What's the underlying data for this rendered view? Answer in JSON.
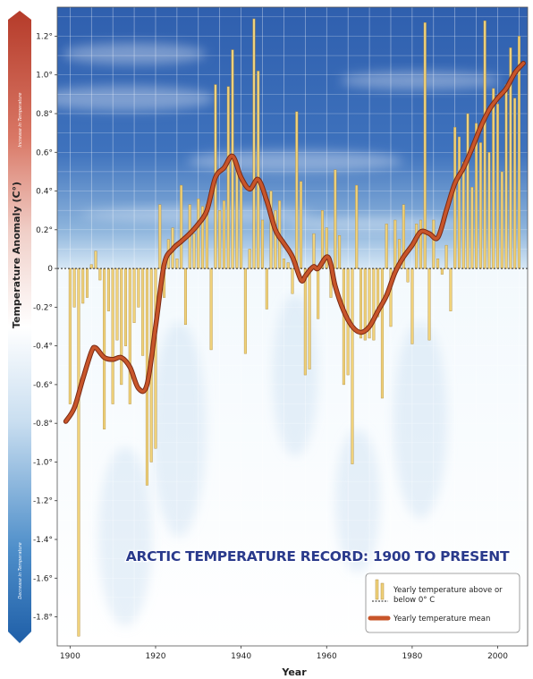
{
  "chart_data": {
    "type": "bar",
    "title": "ARCTIC TEMPERATURE RECORD: 1900 TO PRESENT",
    "xlabel": "Year",
    "ylabel": "Temperature Anomaly (C°)",
    "arrow_labels": {
      "top": "Increase in Temperature",
      "bottom": "Decrease in Temperature"
    },
    "xlim": [
      1897,
      2007
    ],
    "ylim": [
      -1.95,
      1.35
    ],
    "x_ticks": [
      1900,
      1920,
      1940,
      1960,
      1980,
      2000
    ],
    "x_tick_labels": [
      "1900",
      "1920",
      "1940",
      "1960",
      "1980",
      "2000"
    ],
    "y_ticks": [
      1.2,
      1.0,
      0.8,
      0.6,
      0.4,
      0.2,
      0,
      -0.2,
      -0.4,
      -0.6,
      -0.8,
      -1.0,
      -1.2,
      -1.4,
      -1.6,
      -1.8
    ],
    "y_tick_labels": [
      "1.2°",
      "1.0°",
      "0.8°",
      "0.6°",
      "0.4°",
      "0.2°",
      "0",
      "-0.2°",
      "-0.4°",
      "-0.6°",
      "-0.8°",
      "-1.0°",
      "-1.2°",
      "-1.4°",
      "-1.6°",
      "-1.8°"
    ],
    "grid": true,
    "legend": {
      "position": "bottom-right",
      "entries": [
        {
          "label": "Yearly temperature above or below 0° C"
        },
        {
          "label": "Yearly temperature mean"
        }
      ]
    },
    "colors": {
      "bar": "#f0d27a",
      "bar_edge": "#b08a3a",
      "mean_line": "#c8552a",
      "zero_line": "#222222"
    },
    "series": [
      {
        "name": "Yearly temperature above or below 0° C",
        "type": "bar",
        "x": [
          1900,
          1901,
          1902,
          1903,
          1904,
          1905,
          1906,
          1907,
          1908,
          1909,
          1910,
          1911,
          1912,
          1913,
          1914,
          1915,
          1916,
          1917,
          1918,
          1919,
          1920,
          1921,
          1922,
          1923,
          1924,
          1925,
          1926,
          1927,
          1928,
          1929,
          1930,
          1931,
          1932,
          1933,
          1934,
          1935,
          1936,
          1937,
          1938,
          1939,
          1940,
          1941,
          1942,
          1943,
          1944,
          1945,
          1946,
          1947,
          1948,
          1949,
          1950,
          1951,
          1952,
          1953,
          1954,
          1955,
          1956,
          1957,
          1958,
          1959,
          1960,
          1961,
          1962,
          1963,
          1964,
          1965,
          1966,
          1967,
          1968,
          1969,
          1970,
          1971,
          1972,
          1973,
          1974,
          1975,
          1976,
          1977,
          1978,
          1979,
          1980,
          1981,
          1982,
          1983,
          1984,
          1985,
          1986,
          1987,
          1988,
          1989,
          1990,
          1991,
          1992,
          1993,
          1994,
          1995,
          1996,
          1997,
          1998,
          1999,
          2000,
          2001,
          2002,
          2003,
          2004,
          2005
        ],
        "values": [
          -0.7,
          -0.2,
          -1.9,
          -0.18,
          -0.15,
          0.02,
          0.09,
          -0.06,
          -0.83,
          -0.22,
          -0.7,
          -0.37,
          -0.6,
          -0.4,
          -0.7,
          -0.28,
          -0.2,
          -0.45,
          -1.12,
          -1.0,
          -0.93,
          0.33,
          -0.15,
          0.15,
          0.21,
          0.05,
          0.43,
          -0.29,
          0.33,
          0.18,
          0.36,
          0.32,
          0.33,
          -0.42,
          0.95,
          0.3,
          0.35,
          0.94,
          1.13,
          0.55,
          0.45,
          -0.44,
          0.1,
          1.29,
          1.02,
          0.25,
          -0.21,
          0.4,
          0.3,
          0.35,
          0.05,
          0.03,
          -0.13,
          0.81,
          0.45,
          -0.55,
          -0.52,
          0.18,
          -0.26,
          0.3,
          0.21,
          -0.15,
          0.51,
          0.17,
          -0.6,
          -0.55,
          -1.01,
          0.43,
          -0.36,
          -0.37,
          -0.36,
          -0.37,
          -0.25,
          -0.67,
          0.23,
          -0.3,
          0.25,
          0.15,
          0.33,
          -0.07,
          -0.39,
          0.23,
          0.25,
          1.27,
          -0.37,
          0.25,
          0.05,
          -0.03,
          0.12,
          -0.22,
          0.73,
          0.68,
          0.55,
          0.8,
          0.42,
          0.75,
          0.65,
          1.28,
          0.6,
          0.93,
          0.85,
          0.5,
          0.95,
          1.14,
          0.88,
          1.2
        ]
      },
      {
        "name": "Yearly temperature mean",
        "type": "line",
        "x": [
          1899,
          1901,
          1903,
          1905,
          1906,
          1908,
          1910,
          1912,
          1914,
          1916,
          1918,
          1920,
          1922,
          1924,
          1926,
          1928,
          1930,
          1932,
          1934,
          1936,
          1938,
          1940,
          1942,
          1944,
          1946,
          1948,
          1950,
          1952,
          1954,
          1955,
          1956,
          1957,
          1958,
          1960,
          1961,
          1962,
          1964,
          1966,
          1968,
          1970,
          1972,
          1974,
          1976,
          1978,
          1980,
          1982,
          1984,
          1986,
          1988,
          1990,
          1992,
          1994,
          1996,
          1998,
          2000,
          2002,
          2004,
          2006
        ],
        "values": [
          -0.79,
          -0.72,
          -0.57,
          -0.43,
          -0.41,
          -0.46,
          -0.47,
          -0.46,
          -0.51,
          -0.62,
          -0.6,
          -0.3,
          0.02,
          0.1,
          0.14,
          0.18,
          0.23,
          0.3,
          0.47,
          0.52,
          0.58,
          0.47,
          0.41,
          0.46,
          0.35,
          0.2,
          0.13,
          0.06,
          -0.06,
          -0.04,
          -0.01,
          0.01,
          0.0,
          0.06,
          0.02,
          -0.09,
          -0.22,
          -0.3,
          -0.33,
          -0.3,
          -0.22,
          -0.14,
          -0.02,
          0.06,
          0.12,
          0.19,
          0.18,
          0.16,
          0.3,
          0.44,
          0.52,
          0.62,
          0.73,
          0.82,
          0.88,
          0.93,
          1.01,
          1.06
        ]
      }
    ]
  }
}
